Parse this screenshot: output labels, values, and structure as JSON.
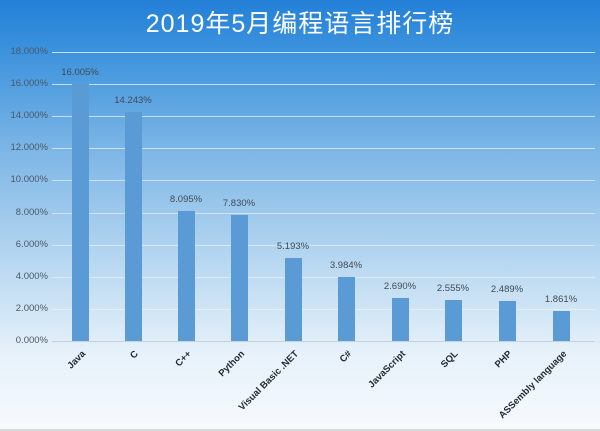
{
  "chart_data": {
    "type": "bar",
    "title": "2019年5月编程语言排行榜",
    "xlabel": "",
    "ylabel": "",
    "categories": [
      "Java",
      "C",
      "C++",
      "Python",
      "Visual Basic .NET",
      "C#",
      "JavaScript",
      "SQL",
      "PHP",
      "ASSembly language"
    ],
    "values": [
      16.005,
      14.243,
      8.095,
      7.83,
      5.193,
      3.984,
      2.69,
      2.555,
      2.489,
      1.861
    ],
    "value_labels": [
      "16.005%",
      "14.243%",
      "8.095%",
      "7.830%",
      "5.193%",
      "3.984%",
      "2.690%",
      "2.555%",
      "2.489%",
      "1.861%"
    ],
    "ylim": [
      0,
      18
    ],
    "yticks": [
      "0.000%",
      "2.000%",
      "4.000%",
      "6.000%",
      "8.000%",
      "10.000%",
      "12.000%",
      "14.000%",
      "16.000%",
      "18.000%"
    ],
    "grid": true,
    "legend": "none",
    "bar_color": "#5b9bd5"
  }
}
